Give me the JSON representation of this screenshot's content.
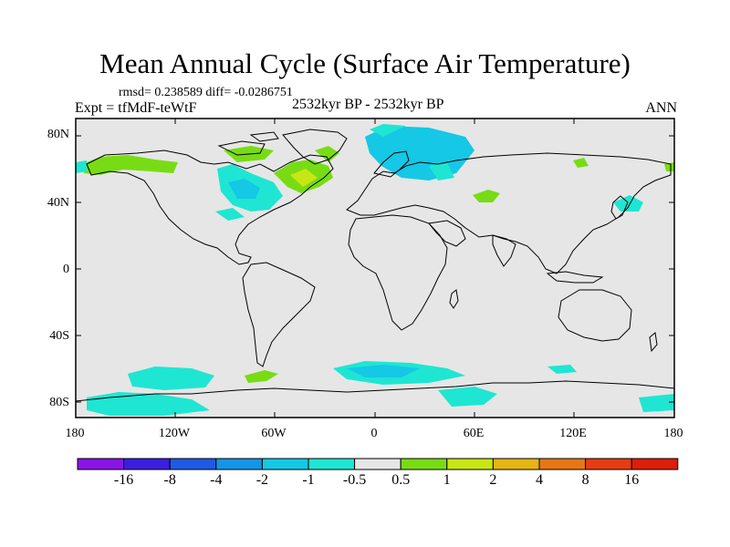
{
  "title": "Mean Annual Cycle (Surface Air Temperature)",
  "stats": "rmsd= 0.238589 diff= -0.0286751",
  "period": "2532kyr BP - 2532kyr BP",
  "experiment": "Expt = tfMdF-teWtF",
  "season": "ANN",
  "lat_labels": [
    "80N",
    "40N",
    "0",
    "40S",
    "80S"
  ],
  "lon_labels": [
    "180",
    "120W",
    "60W",
    "0",
    "60E",
    "120E",
    "180"
  ],
  "colorbar": {
    "labels": [
      "-16",
      "-8",
      "-4",
      "-2",
      "-1",
      "-0.5",
      "0.5",
      "1",
      "2",
      "4",
      "8",
      "16"
    ],
    "colors": [
      "#8a14e6",
      "#3c1ee0",
      "#1e5ae6",
      "#1496e6",
      "#14c8e6",
      "#1ee6d2",
      "#e6e6e6",
      "#78dc14",
      "#c8e614",
      "#e6b414",
      "#e67814",
      "#e63c14",
      "#dc1e0a"
    ]
  },
  "colors": {
    "land_background": "#e6e6e6",
    "neg_small": "#1ee6d2",
    "neg_mid": "#14c8e6",
    "pos_small": "#78dc14",
    "pos_mid": "#c8e614"
  }
}
